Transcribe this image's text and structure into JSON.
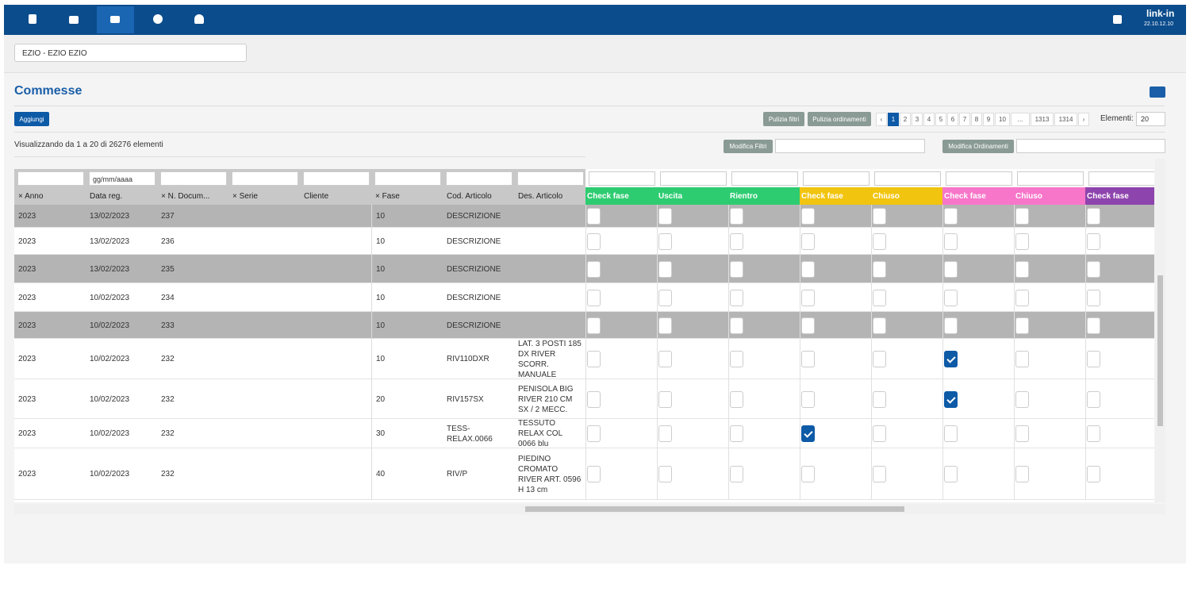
{
  "nav": {
    "logo": "link-in",
    "version": "22.10.12.10"
  },
  "company_select": "EZIO - EZIO EZIO",
  "panel": {
    "title": "Commesse",
    "add_button": "Aggiungi",
    "clear_filters": "Pulizia filtri",
    "clear_sorts": "Pulizia ordinamenti",
    "pagination": [
      "‹",
      "1",
      "2",
      "3",
      "4",
      "5",
      "6",
      "7",
      "8",
      "9",
      "10",
      "...",
      "1313",
      "1314",
      "›"
    ],
    "current_page": "1",
    "elements_label": "Elementi:",
    "elements_value": "20",
    "info": "Visualizzando da 1 a 20 di 26276 elementi",
    "edit_filters": "Modifica Filtri",
    "edit_sorts": "Modifica Ordinamenti",
    "date_placeholder": "gg/mm/aaaa"
  },
  "table": {
    "columns": [
      "× Anno",
      "Data reg.",
      "× N. Docum...",
      "× Serie",
      "Cliente",
      "× Fase",
      "Cod. Articolo",
      "Des. Articolo"
    ],
    "check_columns": [
      {
        "label": "Check fase",
        "color": "#2ecc71"
      },
      {
        "label": "Uscita",
        "color": "#2ecc71"
      },
      {
        "label": "Rientro",
        "color": "#2ecc71"
      },
      {
        "label": "Check fase",
        "color": "#f1c40f"
      },
      {
        "label": "Chiuso",
        "color": "#f1c40f"
      },
      {
        "label": "Check fase",
        "color": "#f776c9"
      },
      {
        "label": "Chiuso",
        "color": "#f776c9"
      },
      {
        "label": "Check fase",
        "color": "#8e44ad"
      }
    ],
    "rows": [
      {
        "anno": "2023",
        "data": "13/02/2023",
        "numero": "237",
        "fase": "10",
        "codice": "DESCRIZIONE",
        "shaded": true,
        "checks": [
          false,
          false,
          false,
          false,
          false,
          false,
          false,
          false
        ]
      },
      {
        "anno": "2023",
        "data": "13/02/2023",
        "numero": "236",
        "fase": "10",
        "codice": "DESCRIZIONE",
        "shaded": false,
        "checks": [
          false,
          false,
          false,
          false,
          false,
          false,
          false,
          false
        ]
      },
      {
        "anno": "2023",
        "data": "13/02/2023",
        "numero": "235",
        "fase": "10",
        "codice": "DESCRIZIONE",
        "shaded": true,
        "checks": [
          false,
          false,
          false,
          false,
          false,
          false,
          false,
          false
        ]
      },
      {
        "anno": "2023",
        "data": "10/02/2023",
        "numero": "234",
        "fase": "10",
        "codice": "DESCRIZIONE",
        "shaded": false,
        "checks": [
          false,
          false,
          false,
          false,
          false,
          false,
          false,
          false
        ]
      },
      {
        "anno": "2023",
        "data": "10/02/2023",
        "numero": "233",
        "fase": "10",
        "codice": "DESCRIZIONE",
        "shaded": true,
        "checks": [
          false,
          false,
          false,
          false,
          false,
          false,
          false,
          false
        ]
      },
      {
        "anno": "2023",
        "data": "10/02/2023",
        "numero": "232",
        "fase": "10",
        "codice": "RIV110DXR",
        "descrizione": "LAT. 3 POSTI 185 DX RIVER SCORR. MANUALE",
        "shaded": false,
        "checks": [
          false,
          false,
          false,
          false,
          false,
          true,
          false,
          false
        ]
      },
      {
        "anno": "2023",
        "data": "10/02/2023",
        "numero": "232",
        "fase": "20",
        "codice": "RIV157SX",
        "descrizione": "PENISOLA BIG RIVER 210 CM SX / 2 MECC.",
        "shaded": false,
        "checks": [
          false,
          false,
          false,
          false,
          false,
          true,
          false,
          false
        ]
      },
      {
        "anno": "2023",
        "data": "10/02/2023",
        "numero": "232",
        "fase": "30",
        "codice": "TESS-RELAX.0066",
        "descrizione": "TESSUTO RELAX COL 0066 blu",
        "shaded": false,
        "checks": [
          false,
          false,
          false,
          true,
          false,
          false,
          false,
          false
        ]
      },
      {
        "anno": "2023",
        "data": "10/02/2023",
        "numero": "232",
        "fase": "40",
        "codice": "RIV/P",
        "descrizione": "PIEDINO CROMATO RIVER ART. 0596 H 13 cm",
        "shaded": false,
        "checks": [
          false,
          false,
          false,
          false,
          false,
          false,
          false,
          false
        ]
      }
    ]
  }
}
